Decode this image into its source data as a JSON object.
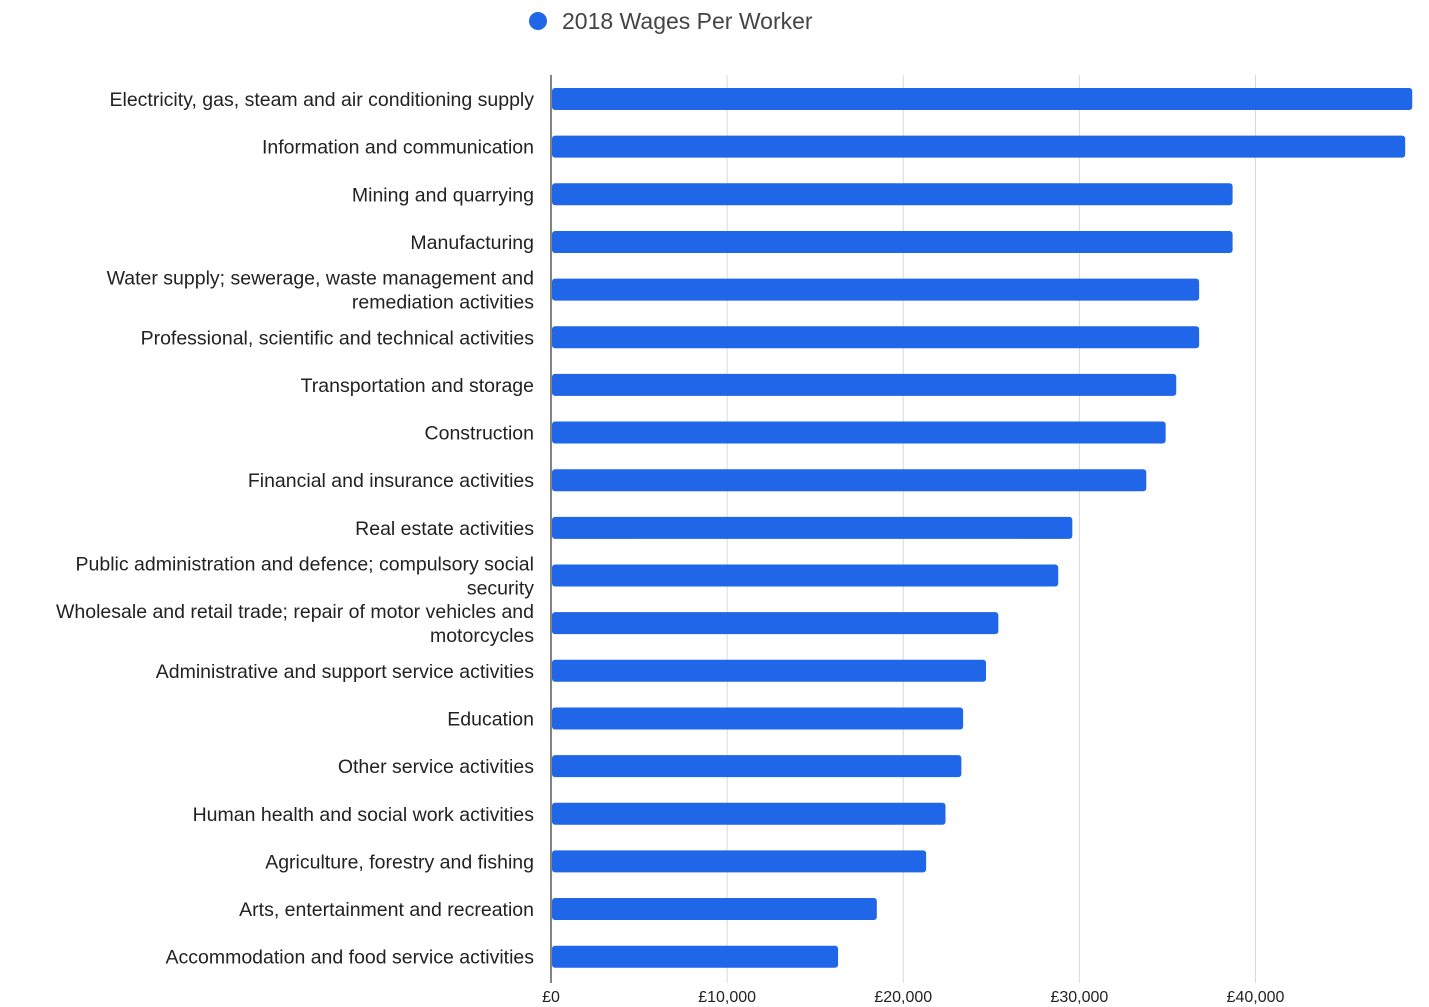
{
  "chart_data": {
    "type": "bar",
    "orientation": "horizontal",
    "title": "",
    "xlabel": "",
    "ylabel": "",
    "legend": {
      "position": "top",
      "entries": [
        "2018 Wages Per Worker"
      ]
    },
    "series": [
      {
        "name": "2018 Wages Per Worker",
        "color": "#1f66e8",
        "values": [
          48900,
          48500,
          38700,
          38700,
          36800,
          36800,
          35500,
          34900,
          33800,
          29600,
          28800,
          25400,
          24700,
          23400,
          23300,
          22400,
          21300,
          18500,
          16300
        ]
      }
    ],
    "categories": [
      "Electricity, gas, steam and air conditioning supply",
      "Information and communication",
      "Mining and quarrying",
      "Manufacturing",
      "Water supply; sewerage, waste management and remediation activities",
      "Professional, scientific and technical activities",
      "Transportation and storage",
      "Construction",
      "Financial and insurance activities",
      "Real estate activities",
      "Public administration and defence; compulsory social security",
      "Wholesale and retail trade; repair of motor vehicles and motorcycles",
      "Administrative and support service activities",
      "Education",
      "Other service activities",
      "Human health and social work activities",
      "Agriculture, forestry and fishing",
      "Arts, entertainment and recreation",
      "Accommodation and food service activities"
    ],
    "category_label_lines": [
      [
        "Electricity, gas, steam and air conditioning supply"
      ],
      [
        "Information and communication"
      ],
      [
        "Mining and quarrying"
      ],
      [
        "Manufacturing"
      ],
      [
        "Water supply; sewerage, waste management and",
        "remediation activities"
      ],
      [
        "Professional, scientific and technical activities"
      ],
      [
        "Transportation and storage"
      ],
      [
        "Construction"
      ],
      [
        "Financial and insurance activities"
      ],
      [
        "Real estate activities"
      ],
      [
        "Public administration and defence; compulsory social",
        "security"
      ],
      [
        "Wholesale and retail trade; repair of motor vehicles and",
        "motorcycles"
      ],
      [
        "Administrative and support service activities"
      ],
      [
        "Education"
      ],
      [
        "Other service activities"
      ],
      [
        "Human health and social work activities"
      ],
      [
        "Agriculture, forestry and fishing"
      ],
      [
        "Arts, entertainment and recreation"
      ],
      [
        "Accommodation and food service activities"
      ]
    ],
    "xlim": [
      0,
      49000
    ],
    "x_ticks": [
      0,
      10000,
      20000,
      30000,
      40000
    ],
    "x_tick_labels": [
      "£0",
      "£10,000",
      "£20,000",
      "£30,000",
      "£40,000"
    ],
    "grid": true
  },
  "colors": {
    "bar": "#1f66e8",
    "grid": "#d9d9d9",
    "axis": "#333333"
  }
}
